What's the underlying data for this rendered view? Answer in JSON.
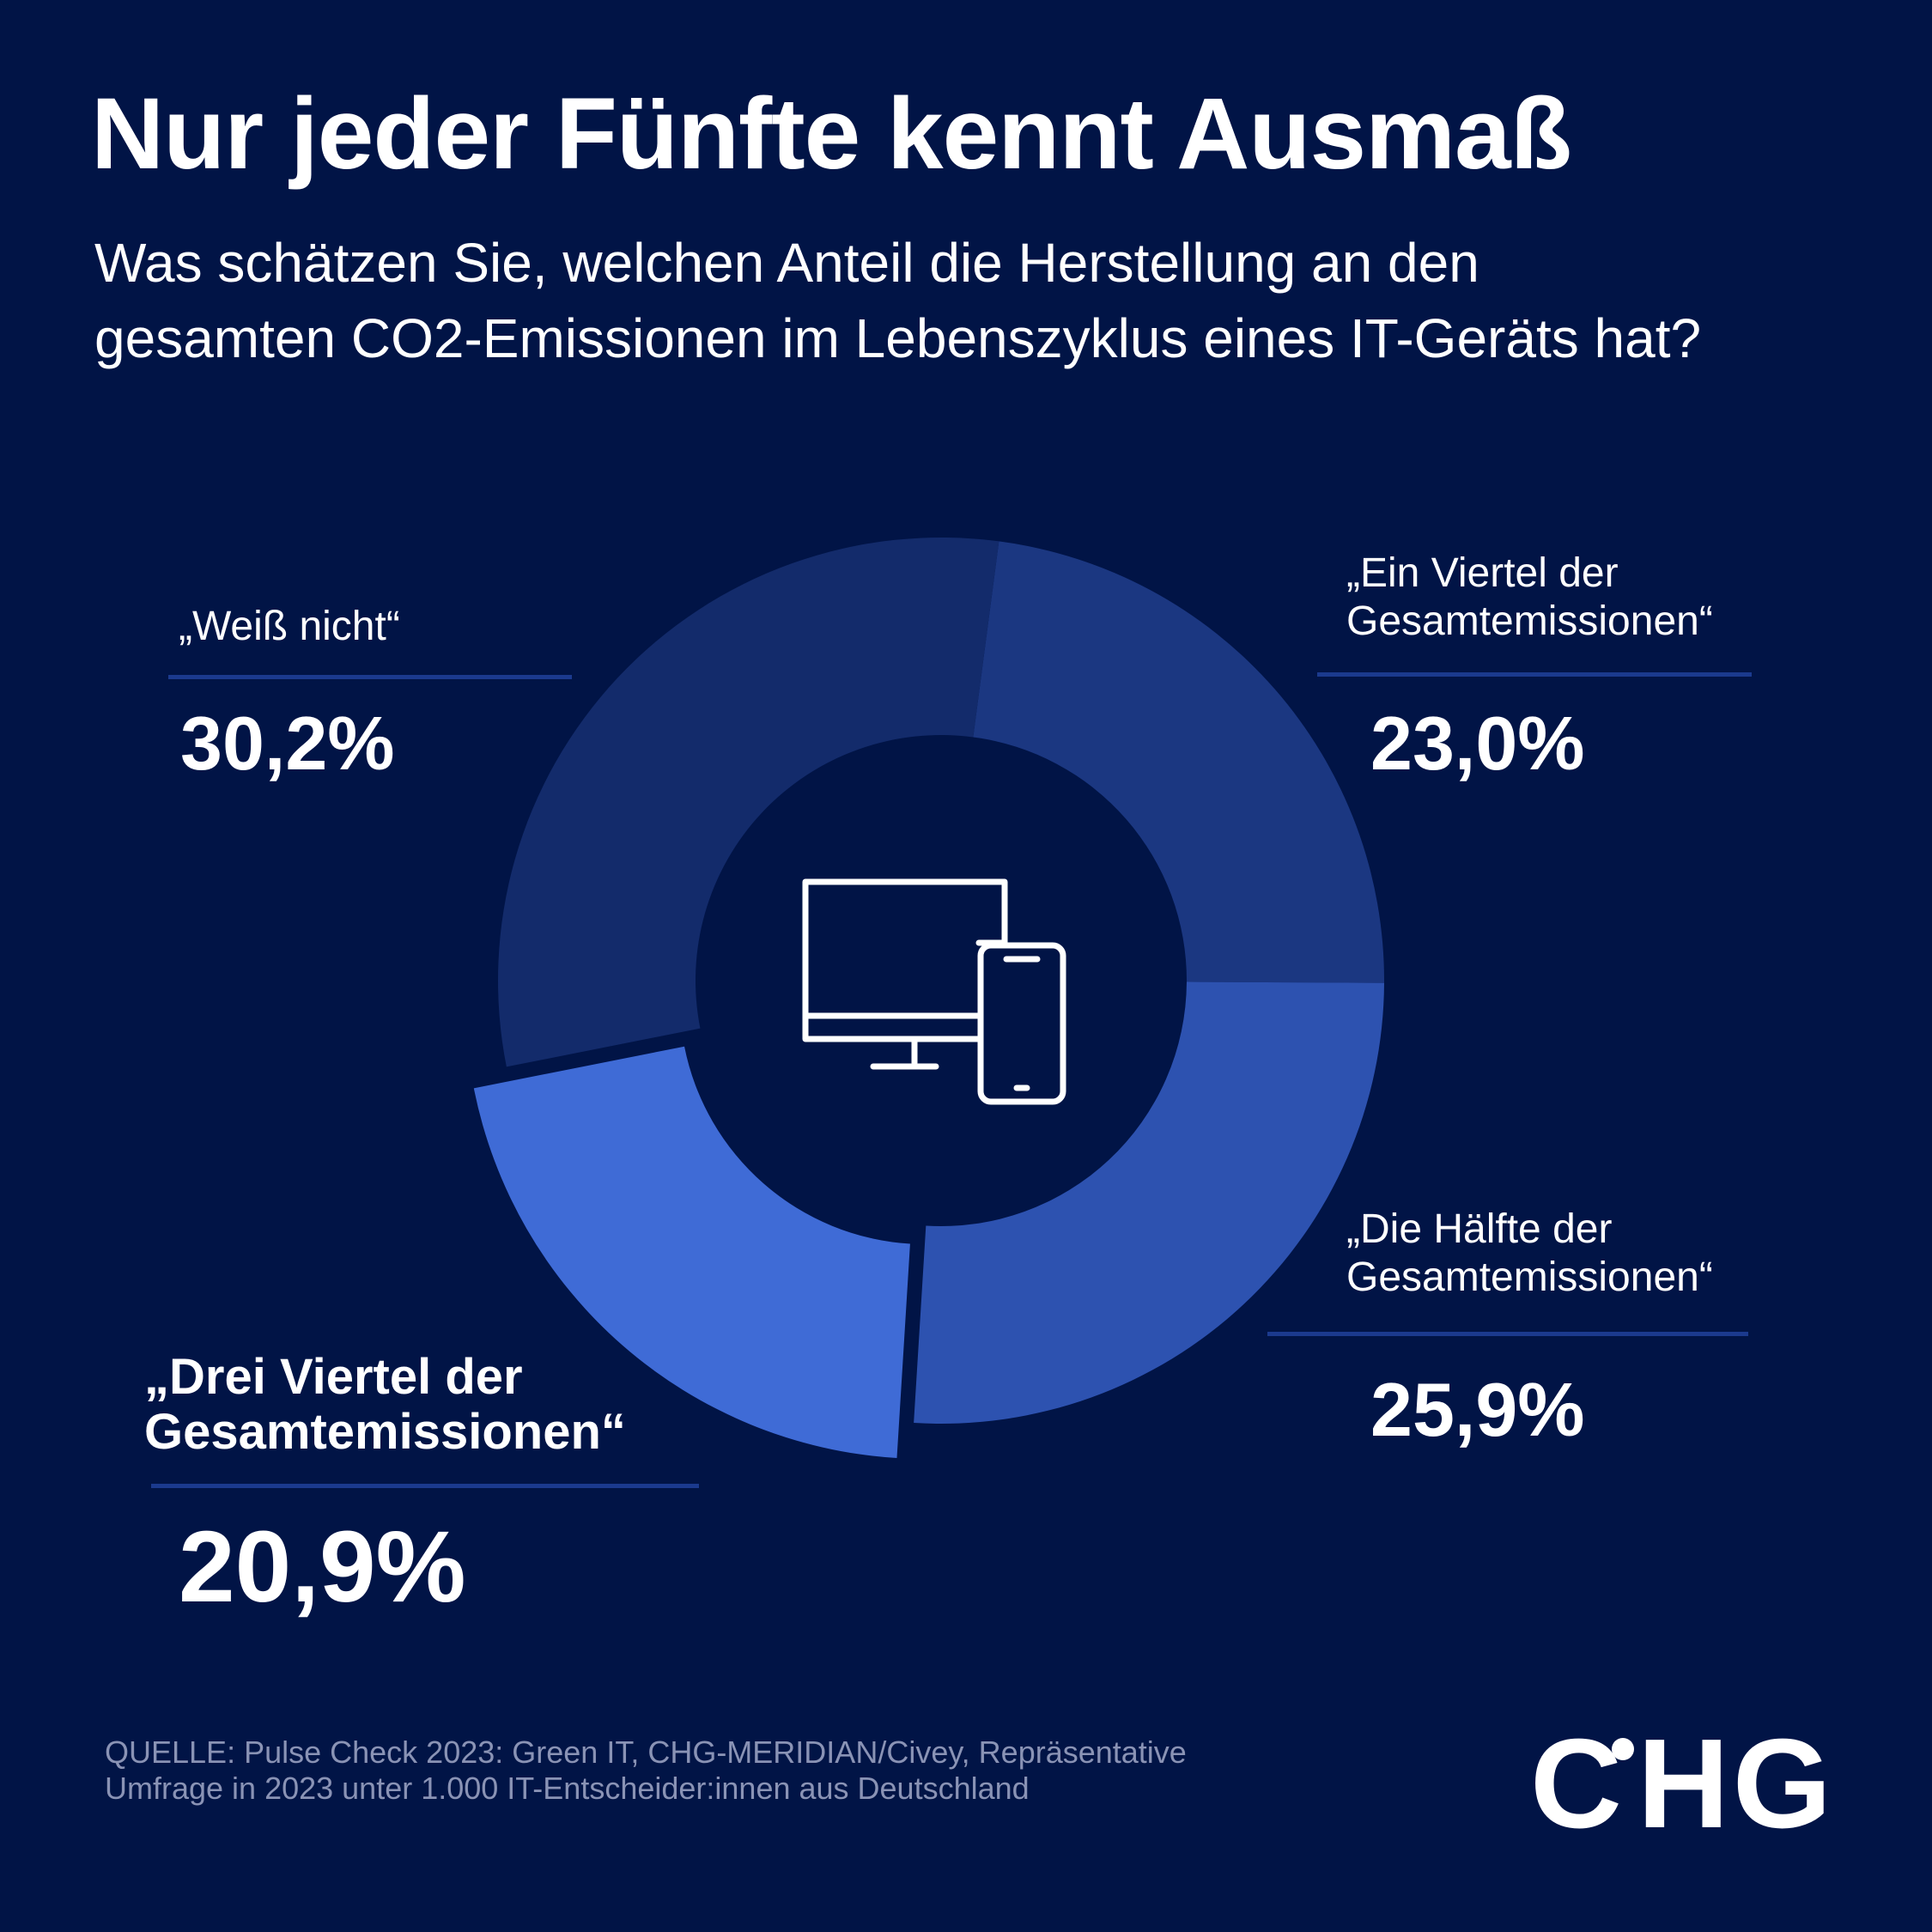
{
  "header": {
    "title": "Nur jeder Fünfte kennt Ausmaß",
    "subtitle_line1": "Was schätzen Sie, welchen Anteil die Herstellung an den",
    "subtitle_line2": "gesamten CO2-Emissionen im Lebenszyklus eines IT-Geräts hat?"
  },
  "chart_data": {
    "type": "pie",
    "variant": "donut",
    "center_icon": "monitor-and-smartphone-icon",
    "series": [
      {
        "label_line1": "„Ein Viertel der",
        "label_line2": "Gesamtemissionen“",
        "value": 23.0,
        "display": "23,0%",
        "color": "#1b3781"
      },
      {
        "label_line1": "„Die Hälfte der",
        "label_line2": "Gesamtemissionen“",
        "value": 25.9,
        "display": "25,9%",
        "color": "#2d52b0"
      },
      {
        "label_line1": "„Drei Viertel der",
        "label_line2": "Gesamtemissionen“",
        "value": 20.9,
        "display": "20,9%",
        "color": "#3f6bd6",
        "highlighted": true
      },
      {
        "label_line1": "„Weiß nicht“",
        "label_line2": "",
        "value": 30.2,
        "display": "30,2%",
        "color": "#132b6b"
      }
    ]
  },
  "footer": {
    "source_line1": "QUELLE: Pulse Check 2023: Green IT, CHG-MERIDIAN/Civey, Repräsentative",
    "source_line2": "Umfrage in 2023 unter 1.000 IT-Entscheider:innen aus Deutschland",
    "logo_text_c": "C",
    "logo_text_rest": "HG"
  }
}
